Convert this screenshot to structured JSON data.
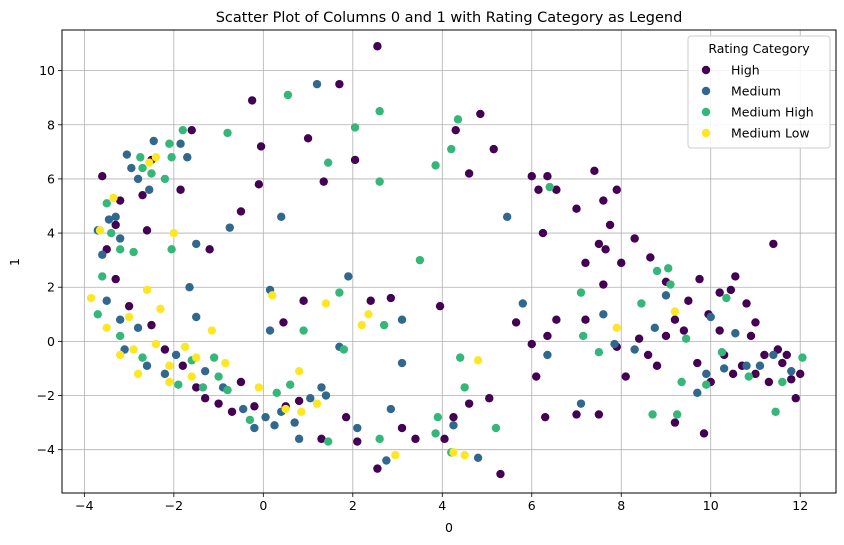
{
  "chart_data": {
    "type": "scatter",
    "title": "Scatter Plot of Columns 0 and 1 with Rating Category as Legend",
    "xlabel": "0",
    "ylabel": "1",
    "xlim": [
      -4.5,
      12.8
    ],
    "ylim": [
      -5.6,
      11.5
    ],
    "xticks": [
      -4,
      -2,
      0,
      2,
      4,
      6,
      8,
      10,
      12
    ],
    "yticks": [
      -4,
      -2,
      0,
      2,
      4,
      6,
      8,
      10
    ],
    "xtick_labels": [
      "−4",
      "−2",
      "0",
      "2",
      "4",
      "6",
      "8",
      "10",
      "12"
    ],
    "ytick_labels": [
      "−4",
      "−2",
      "0",
      "2",
      "4",
      "6",
      "8",
      "10"
    ],
    "grid": true,
    "legend": {
      "title": "Rating Category",
      "placement": "top-right"
    },
    "series": [
      {
        "name": "High",
        "color": "#440154",
        "points": [
          [
            2.55,
            10.9
          ],
          [
            -0.25,
            8.9
          ],
          [
            1.0,
            7.5
          ],
          [
            1.35,
            5.9
          ],
          [
            2.05,
            6.7
          ],
          [
            1.7,
            9.5
          ],
          [
            -0.05,
            7.2
          ],
          [
            -0.1,
            5.8
          ],
          [
            4.3,
            7.8
          ],
          [
            4.85,
            8.4
          ],
          [
            4.6,
            6.2
          ],
          [
            5.15,
            7.1
          ],
          [
            -1.6,
            7.8
          ],
          [
            -1.85,
            5.6
          ],
          [
            -0.5,
            4.8
          ],
          [
            -1.2,
            3.4
          ],
          [
            -3.6,
            6.1
          ],
          [
            -3.2,
            5.2
          ],
          [
            -2.5,
            6.7
          ],
          [
            -2.7,
            5.4
          ],
          [
            -3.3,
            4.3
          ],
          [
            -2.6,
            4.1
          ],
          [
            -3.5,
            3.4
          ],
          [
            -3.3,
            2.3
          ],
          [
            -3.0,
            1.3
          ],
          [
            -2.5,
            0.6
          ],
          [
            -2.2,
            -0.3
          ],
          [
            -1.8,
            -0.9
          ],
          [
            -1.5,
            -1.7
          ],
          [
            -1.3,
            -2.1
          ],
          [
            -1.0,
            -2.3
          ],
          [
            -0.7,
            -2.6
          ],
          [
            -0.5,
            -1.5
          ],
          [
            -0.2,
            -2.4
          ],
          [
            0.5,
            -2.4
          ],
          [
            0.8,
            -2.2
          ],
          [
            0.9,
            1.5
          ],
          [
            0.45,
            0.7
          ],
          [
            2.4,
            1.5
          ],
          [
            2.85,
            1.6
          ],
          [
            3.95,
            1.3
          ],
          [
            1.3,
            -3.6
          ],
          [
            1.85,
            -2.8
          ],
          [
            2.1,
            -3.7
          ],
          [
            2.55,
            -4.7
          ],
          [
            3.4,
            -3.6
          ],
          [
            3.1,
            -3.2
          ],
          [
            4.05,
            -3.6
          ],
          [
            4.25,
            -2.8
          ],
          [
            4.6,
            -2.3
          ],
          [
            5.3,
            -4.9
          ],
          [
            5.05,
            -2.1
          ],
          [
            5.65,
            0.7
          ],
          [
            6.0,
            -0.1
          ],
          [
            6.1,
            -1.3
          ],
          [
            6.3,
            -2.8
          ],
          [
            6.35,
            0.2
          ],
          [
            6.55,
            0.8
          ],
          [
            6.15,
            5.6
          ],
          [
            6.35,
            6.1
          ],
          [
            6.0,
            6.1
          ],
          [
            6.25,
            4.0
          ],
          [
            6.55,
            5.6
          ],
          [
            7.0,
            4.9
          ],
          [
            7.2,
            2.9
          ],
          [
            7.4,
            6.3
          ],
          [
            7.5,
            3.6
          ],
          [
            7.75,
            4.3
          ],
          [
            7.6,
            2.1
          ],
          [
            7.65,
            3.4
          ],
          [
            7.9,
            5.6
          ],
          [
            7.6,
            5.2
          ],
          [
            7.0,
            -2.7
          ],
          [
            7.5,
            -2.7
          ],
          [
            8.0,
            2.9
          ],
          [
            8.3,
            3.8
          ],
          [
            8.65,
            3.1
          ],
          [
            8.1,
            -1.3
          ],
          [
            8.8,
            -0.9
          ],
          [
            9.0,
            2.2
          ],
          [
            9.2,
            0.8
          ],
          [
            9.5,
            1.5
          ],
          [
            9.2,
            -3.0
          ],
          [
            9.75,
            2.3
          ],
          [
            9.85,
            -3.4
          ],
          [
            9.95,
            1.0
          ],
          [
            10.2,
            1.8
          ],
          [
            10.45,
            1.9
          ],
          [
            10.55,
            2.4
          ],
          [
            10.8,
            1.4
          ],
          [
            10.9,
            0.2
          ],
          [
            11.0,
            0.7
          ],
          [
            11.3,
            -1.5
          ],
          [
            11.4,
            3.6
          ],
          [
            11.6,
            -0.8
          ],
          [
            11.9,
            -2.1
          ],
          [
            11.8,
            -1.4
          ],
          [
            12.0,
            -1.2
          ],
          [
            10.3,
            -0.5
          ],
          [
            10.7,
            -0.9
          ],
          [
            11.2,
            -0.5
          ],
          [
            11.5,
            -0.3
          ],
          [
            9.4,
            0.4
          ],
          [
            8.6,
            -0.5
          ],
          [
            7.2,
            0.8
          ],
          [
            7.9,
            -0.2
          ],
          [
            8.4,
            0.1
          ],
          [
            9.0,
            0.2
          ],
          [
            10.0,
            -1.5
          ],
          [
            10.5,
            -1.2
          ],
          [
            11.0,
            -1.2
          ],
          [
            11.7,
            -0.5
          ],
          [
            10.2,
            0.4
          ],
          [
            9.7,
            -0.8
          ]
        ]
      },
      {
        "name": "Medium",
        "color": "#31688e",
        "points": [
          [
            1.2,
            9.5
          ],
          [
            -3.05,
            6.9
          ],
          [
            -2.95,
            6.4
          ],
          [
            -2.8,
            6.0
          ],
          [
            -2.45,
            7.4
          ],
          [
            -1.85,
            7.3
          ],
          [
            -1.7,
            6.8
          ],
          [
            -2.55,
            5.6
          ],
          [
            -3.3,
            4.6
          ],
          [
            -3.45,
            4.5
          ],
          [
            -3.7,
            4.1
          ],
          [
            -3.2,
            3.8
          ],
          [
            -3.6,
            3.2
          ],
          [
            -3.5,
            1.5
          ],
          [
            -3.2,
            0.8
          ],
          [
            -2.8,
            0.5
          ],
          [
            -1.65,
            2.0
          ],
          [
            -1.5,
            0.9
          ],
          [
            -1.5,
            3.6
          ],
          [
            -0.75,
            4.2
          ],
          [
            0.4,
            4.6
          ],
          [
            0.15,
            1.9
          ],
          [
            0.15,
            0.4
          ],
          [
            -0.45,
            -2.5
          ],
          [
            0.05,
            -2.8
          ],
          [
            0.25,
            -3.1
          ],
          [
            0.4,
            -2.6
          ],
          [
            0.7,
            -3.0
          ],
          [
            0.8,
            -3.6
          ],
          [
            1.05,
            -2.1
          ],
          [
            1.3,
            -1.7
          ],
          [
            1.9,
            2.4
          ],
          [
            1.7,
            -0.2
          ],
          [
            2.1,
            -3.2
          ],
          [
            3.1,
            0.8
          ],
          [
            3.1,
            -0.8
          ],
          [
            2.85,
            -2.5
          ],
          [
            2.75,
            -4.4
          ],
          [
            4.25,
            -3.1
          ],
          [
            4.8,
            -4.3
          ],
          [
            5.45,
            4.6
          ],
          [
            5.8,
            1.4
          ],
          [
            6.35,
            -0.5
          ],
          [
            7.1,
            -2.3
          ],
          [
            7.6,
            1.0
          ],
          [
            7.85,
            -0.1
          ],
          [
            8.75,
            0.5
          ],
          [
            9.0,
            1.7
          ],
          [
            9.7,
            -1.9
          ],
          [
            10.0,
            0.9
          ],
          [
            10.55,
            0.3
          ],
          [
            10.8,
            -0.9
          ],
          [
            11.4,
            -0.5
          ],
          [
            11.8,
            -1.1
          ],
          [
            -2.2,
            -1.2
          ],
          [
            -1.95,
            -0.5
          ],
          [
            -2.6,
            -0.9
          ],
          [
            -3.1,
            -0.3
          ],
          [
            -1.3,
            -1.1
          ],
          [
            -0.9,
            -1.7
          ],
          [
            -0.2,
            -3.2
          ],
          [
            1.4,
            -2.0
          ],
          [
            10.3,
            -1.0
          ],
          [
            9.9,
            -1.2
          ],
          [
            11.1,
            -0.9
          ],
          [
            8.3,
            -0.3
          ]
        ]
      },
      {
        "name": "Medium High",
        "color": "#35b779",
        "points": [
          [
            0.55,
            9.1
          ],
          [
            2.6,
            8.5
          ],
          [
            2.05,
            7.9
          ],
          [
            -0.8,
            7.7
          ],
          [
            -1.8,
            7.8
          ],
          [
            -2.1,
            7.3
          ],
          [
            -2.05,
            6.8
          ],
          [
            -2.7,
            6.4
          ],
          [
            -2.5,
            6.2
          ],
          [
            -2.2,
            6.0
          ],
          [
            -2.75,
            6.8
          ],
          [
            -3.5,
            5.1
          ],
          [
            -3.2,
            3.4
          ],
          [
            -2.9,
            3.3
          ],
          [
            -2.05,
            3.4
          ],
          [
            -3.4,
            4.0
          ],
          [
            -3.6,
            2.4
          ],
          [
            -3.7,
            1.0
          ],
          [
            -3.2,
            0.2
          ],
          [
            -2.7,
            -0.6
          ],
          [
            -1.9,
            -1.6
          ],
          [
            -1.6,
            -0.7
          ],
          [
            -1.1,
            -0.6
          ],
          [
            -1.0,
            -1.3
          ],
          [
            -0.8,
            -1.8
          ],
          [
            -0.3,
            -2.9
          ],
          [
            0.6,
            -1.6
          ],
          [
            0.9,
            0.4
          ],
          [
            1.45,
            -3.7
          ],
          [
            1.7,
            1.8
          ],
          [
            1.8,
            -0.3
          ],
          [
            2.6,
            -3.6
          ],
          [
            2.7,
            0.6
          ],
          [
            2.6,
            5.9
          ],
          [
            3.5,
            3.0
          ],
          [
            3.85,
            6.5
          ],
          [
            4.2,
            7.1
          ],
          [
            4.35,
            8.2
          ],
          [
            4.4,
            -0.6
          ],
          [
            4.5,
            -1.7
          ],
          [
            3.85,
            -3.4
          ],
          [
            3.9,
            -2.8
          ],
          [
            4.2,
            -4.1
          ],
          [
            5.2,
            -3.2
          ],
          [
            7.1,
            1.8
          ],
          [
            7.15,
            0.2
          ],
          [
            7.5,
            -0.4
          ],
          [
            8.45,
            1.4
          ],
          [
            8.8,
            2.6
          ],
          [
            9.05,
            2.7
          ],
          [
            8.7,
            -2.7
          ],
          [
            9.1,
            2.1
          ],
          [
            9.35,
            -1.5
          ],
          [
            9.45,
            0.1
          ],
          [
            9.25,
            -2.7
          ],
          [
            9.9,
            -1.6
          ],
          [
            10.35,
            1.6
          ],
          [
            10.25,
            -0.4
          ],
          [
            10.85,
            -1.3
          ],
          [
            11.45,
            -2.6
          ],
          [
            11.6,
            -1.5
          ],
          [
            12.05,
            -0.6
          ],
          [
            6.4,
            5.7
          ],
          [
            1.45,
            6.6
          ],
          [
            -1.35,
            -1.7
          ],
          [
            0.3,
            -1.9
          ]
        ]
      },
      {
        "name": "Medium Low",
        "color": "#fde725",
        "points": [
          [
            -3.85,
            1.6
          ],
          [
            -3.65,
            4.1
          ],
          [
            -3.35,
            5.3
          ],
          [
            -3.5,
            0.5
          ],
          [
            -3.2,
            -0.5
          ],
          [
            -2.9,
            -0.3
          ],
          [
            -2.55,
            6.6
          ],
          [
            -2.4,
            6.8
          ],
          [
            -2.6,
            1.9
          ],
          [
            -2.3,
            1.2
          ],
          [
            -2.0,
            4.0
          ],
          [
            -1.75,
            -0.2
          ],
          [
            -2.1,
            -1.5
          ],
          [
            -2.8,
            -1.2
          ],
          [
            -1.5,
            -0.6
          ],
          [
            -1.15,
            0.4
          ],
          [
            -0.85,
            -0.8
          ],
          [
            -0.1,
            -1.7
          ],
          [
            0.2,
            1.7
          ],
          [
            0.5,
            -2.5
          ],
          [
            0.85,
            -2.6
          ],
          [
            0.8,
            -1.1
          ],
          [
            1.2,
            -2.3
          ],
          [
            1.4,
            1.4
          ],
          [
            2.2,
            0.6
          ],
          [
            2.35,
            1.0
          ],
          [
            2.95,
            -4.2
          ],
          [
            4.25,
            -4.1
          ],
          [
            4.5,
            -4.2
          ],
          [
            4.8,
            -0.7
          ],
          [
            7.9,
            0.5
          ],
          [
            9.2,
            1.1
          ],
          [
            -2.1,
            -0.9
          ],
          [
            -1.6,
            -1.3
          ],
          [
            -3.0,
            0.9
          ],
          [
            -2.4,
            -0.1
          ]
        ]
      }
    ]
  }
}
